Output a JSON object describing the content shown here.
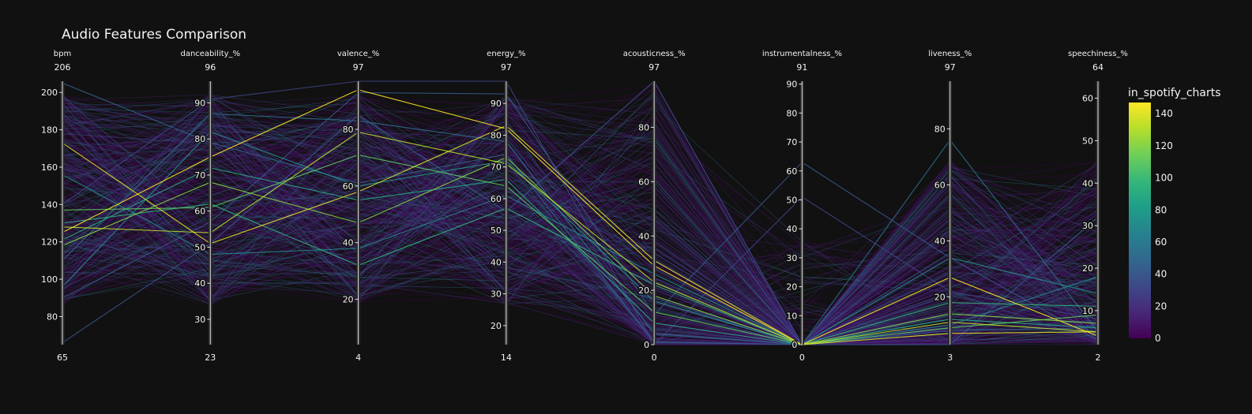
{
  "chart_data": {
    "type": "parallel_coordinates",
    "title": "Audio Features Comparison",
    "color_by": "in_spotify_charts",
    "colorscale": "Viridis",
    "colorscale_stops": [
      "#440154",
      "#482878",
      "#3e4989",
      "#31688e",
      "#26828e",
      "#1f9e89",
      "#35b779",
      "#6ece58",
      "#b5de2b",
      "#fde725"
    ],
    "color_range": [
      0,
      147
    ],
    "colorbar": {
      "title": "in_spotify_charts",
      "ticks": [
        "0",
        "20",
        "40",
        "60",
        "80",
        "100",
        "120",
        "140"
      ]
    },
    "axes": [
      {
        "label": "bpm",
        "min": 65,
        "max": 206,
        "ticks": [
          80,
          100,
          120,
          140,
          160,
          180,
          200
        ]
      },
      {
        "label": "danceability_%",
        "min": 23,
        "max": 96,
        "ticks": [
          30,
          40,
          50,
          60,
          70,
          80,
          90
        ]
      },
      {
        "label": "valence_%",
        "min": 4,
        "max": 97,
        "ticks": [
          20,
          40,
          60,
          80
        ]
      },
      {
        "label": "energy_%",
        "min": 14,
        "max": 97,
        "ticks": [
          20,
          30,
          40,
          50,
          60,
          70,
          80,
          90
        ]
      },
      {
        "label": "acousticness_%",
        "min": 0,
        "max": 97,
        "ticks": [
          0,
          20,
          40,
          60,
          80
        ]
      },
      {
        "label": "instrumentalness_%",
        "min": 0,
        "max": 91,
        "ticks": [
          0,
          10,
          20,
          30,
          40,
          50,
          60,
          70,
          80,
          90
        ]
      },
      {
        "label": "liveness_%",
        "min": 3,
        "max": 97,
        "ticks": [
          20,
          40,
          60,
          80
        ]
      },
      {
        "label": "speechiness_%",
        "min": 2,
        "max": 64,
        "ticks": [
          10,
          20,
          30,
          40,
          50,
          60
        ]
      }
    ],
    "highlighted_records": [
      {
        "in_spotify_charts": 147,
        "values": [
          125,
          75,
          94,
          82,
          29,
          0,
          27,
          4
        ]
      },
      {
        "in_spotify_charts": 140,
        "values": [
          173,
          51,
          58,
          83,
          31,
          0,
          7,
          5
        ]
      },
      {
        "in_spotify_charts": 132,
        "values": [
          128,
          54,
          79,
          71,
          23,
          0,
          11,
          5
        ]
      },
      {
        "in_spotify_charts": 120,
        "values": [
          118,
          68,
          47,
          73,
          18,
          0,
          14,
          7
        ]
      },
      {
        "in_spotify_charts": 110,
        "values": [
          137,
          61,
          71,
          64,
          12,
          0,
          9,
          9
        ]
      },
      {
        "in_spotify_charts": 95,
        "values": [
          130,
          62,
          32,
          57,
          22,
          0,
          18,
          11
        ]
      },
      {
        "in_spotify_charts": 88,
        "values": [
          121,
          72,
          55,
          66,
          8,
          0,
          12,
          6
        ]
      },
      {
        "in_spotify_charts": 75,
        "values": [
          96,
          82,
          60,
          72,
          16,
          0,
          34,
          14
        ]
      },
      {
        "in_spotify_charts": 68,
        "values": [
          156,
          48,
          38,
          61,
          26,
          0,
          10,
          18
        ]
      },
      {
        "in_spotify_charts": 52,
        "values": [
          110,
          87,
          83,
          78,
          4,
          0,
          76,
          5
        ]
      },
      {
        "in_spotify_charts": 45,
        "values": [
          205,
          79,
          61,
          74,
          1,
          0,
          8,
          6
        ]
      },
      {
        "in_spotify_charts": 40,
        "values": [
          90,
          57,
          93,
          93,
          11,
          63,
          34,
          3
        ]
      },
      {
        "in_spotify_charts": 38,
        "values": [
          66,
          51,
          85,
          56,
          97,
          0,
          3,
          32
        ]
      },
      {
        "in_spotify_charts": 30,
        "values": [
          140,
          91,
          97,
          97,
          0,
          51,
          22,
          8
        ]
      }
    ]
  }
}
